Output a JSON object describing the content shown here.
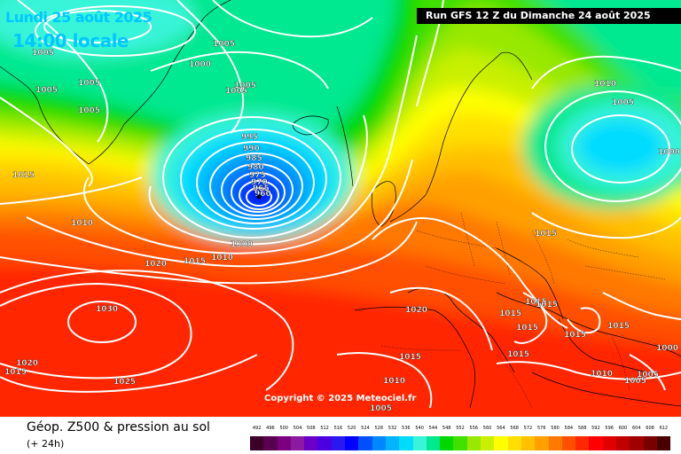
{
  "header": {
    "date_line": "Lundi 25 août 2025",
    "time_line": "14:00 locale",
    "run_line": "Run GFS 12 Z du Dimanche 24 août 2025"
  },
  "footer": {
    "copyright": "Copyright © 2025 Meteociel.fr",
    "title": "Géop. Z500 & pression au sol",
    "subtitle": "(+ 24h)"
  },
  "legend": {
    "labels": [
      "492",
      "496",
      "500",
      "504",
      "508",
      "512",
      "516",
      "520",
      "524",
      "528",
      "532",
      "536",
      "540",
      "544",
      "548",
      "552",
      "556",
      "560",
      "564",
      "568",
      "572",
      "576",
      "580",
      "584",
      "588",
      "592",
      "596",
      "600",
      "604",
      "608",
      "612"
    ],
    "colors": [
      "#3c0028",
      "#5a0050",
      "#7a0080",
      "#8c1aa0",
      "#6a00c8",
      "#4a00e0",
      "#2a18f0",
      "#0000ff",
      "#0050ff",
      "#0088ff",
      "#00b4ff",
      "#00dcff",
      "#38f4d8",
      "#00e890",
      "#00d800",
      "#40e000",
      "#98e800",
      "#c8f000",
      "#ffff00",
      "#ffe000",
      "#ffc000",
      "#ffa000",
      "#ff7800",
      "#ff5000",
      "#ff2800",
      "#ff0000",
      "#e00000",
      "#c00000",
      "#a00000",
      "#780000",
      "#480000"
    ]
  },
  "pressure_labels": [
    {
      "value": "1005",
      "key": "greenland-nw"
    },
    {
      "value": "1005",
      "key": "greenland-n"
    },
    {
      "value": "1000",
      "key": "greenland-ne"
    },
    {
      "value": "1005",
      "key": "greenland-w"
    },
    {
      "value": "1005",
      "key": "greenland-c"
    },
    {
      "value": "1005",
      "key": "iceland-n-a"
    },
    {
      "value": "1005",
      "key": "iceland-n-b"
    },
    {
      "value": "1005",
      "key": "greenland-s"
    },
    {
      "value": "1015",
      "key": "labrador"
    },
    {
      "value": "1010",
      "key": "atlantic-w"
    },
    {
      "value": "995",
      "key": "low-995"
    },
    {
      "value": "990",
      "key": "low-990"
    },
    {
      "value": "985",
      "key": "low-985"
    },
    {
      "value": "980",
      "key": "low-980"
    },
    {
      "value": "975",
      "key": "low-975"
    },
    {
      "value": "970",
      "key": "low-970"
    },
    {
      "value": "965",
      "key": "low-965"
    },
    {
      "value": "960",
      "key": "low-960"
    },
    {
      "value": "1000",
      "key": "low-1000"
    },
    {
      "value": "1020",
      "key": "atlantic-mid"
    },
    {
      "value": "1015",
      "key": "atlantic-c"
    },
    {
      "value": "1010",
      "key": "atlantic-e"
    },
    {
      "value": "1030",
      "key": "azores-high"
    },
    {
      "value": "1020",
      "key": "atlantic-sw"
    },
    {
      "value": "1015",
      "key": "atlantic-sw-edge"
    },
    {
      "value": "1025",
      "key": "atlantic-s"
    },
    {
      "value": "1020",
      "key": "iberia-n"
    },
    {
      "value": "1015",
      "key": "iberia-s"
    },
    {
      "value": "1010",
      "key": "mediterranean"
    },
    {
      "value": "1005",
      "key": "sahara"
    },
    {
      "value": "1010",
      "key": "scandinavia-n"
    },
    {
      "value": "1005",
      "key": "scandinavia-e"
    },
    {
      "value": "1000",
      "key": "russia-n"
    },
    {
      "value": "1015",
      "key": "poland"
    },
    {
      "value": "1015",
      "key": "balkans-a"
    },
    {
      "value": "1015",
      "key": "balkans-b"
    },
    {
      "value": "1015",
      "key": "adriatic"
    },
    {
      "value": "1015",
      "key": "italy-s"
    },
    {
      "value": "1015",
      "key": "greece"
    },
    {
      "value": "1015",
      "key": "black-sea-s"
    },
    {
      "value": "1015",
      "key": "ionian"
    },
    {
      "value": "1010",
      "key": "libya"
    },
    {
      "value": "1005",
      "key": "egypt"
    },
    {
      "value": "1005",
      "key": "egypt-e"
    },
    {
      "value": "1000",
      "key": "middle-east"
    }
  ]
}
